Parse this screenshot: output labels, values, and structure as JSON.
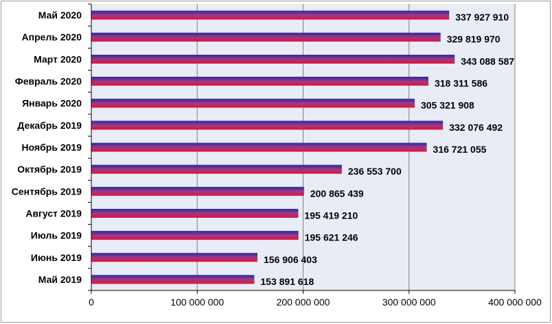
{
  "chart_data": {
    "type": "bar",
    "orientation": "horizontal",
    "categories": [
      "Май 2020",
      "Апрель 2020",
      "Март 2020",
      "Февраль 2020",
      "Январь 2020",
      "Декабрь 2019",
      "Ноябрь 2019",
      "Октябрь 2019",
      "Сентябрь 2019",
      "Август 2019",
      "Июль 2019",
      "Июнь 2019",
      "Май 2019"
    ],
    "values": [
      337927910,
      329819970,
      343088587,
      318311586,
      305321908,
      332076492,
      316721055,
      236553700,
      200865439,
      195419210,
      195621246,
      156906403,
      153891618
    ],
    "value_labels": [
      "337 927 910",
      "329 819 970",
      "343 088 587",
      "318 311 586",
      "305 321 908",
      "332 076 492",
      "316 721 055",
      "236 553 700",
      "200 865 439",
      "195 419 210",
      "195 621 246",
      "156 906 403",
      "153 891 618"
    ],
    "xlim": [
      0,
      400000000
    ],
    "x_ticks": [
      0,
      100000000,
      200000000,
      300000000,
      400000000
    ],
    "x_tick_labels": [
      "0",
      "100 000 000",
      "200 000 000",
      "300 000 000",
      "400 000 000"
    ],
    "title": "",
    "xlabel": "",
    "ylabel": "",
    "grid": "vertical",
    "legend": "none",
    "colors": {
      "plot_background": "#e8ecf5",
      "gridline": "#7f7f7f",
      "axis": "#000000",
      "bar_top": "#2a2a9a",
      "bar_mid": "#9a3a8a",
      "bar_bottom": "#e8103a"
    }
  }
}
